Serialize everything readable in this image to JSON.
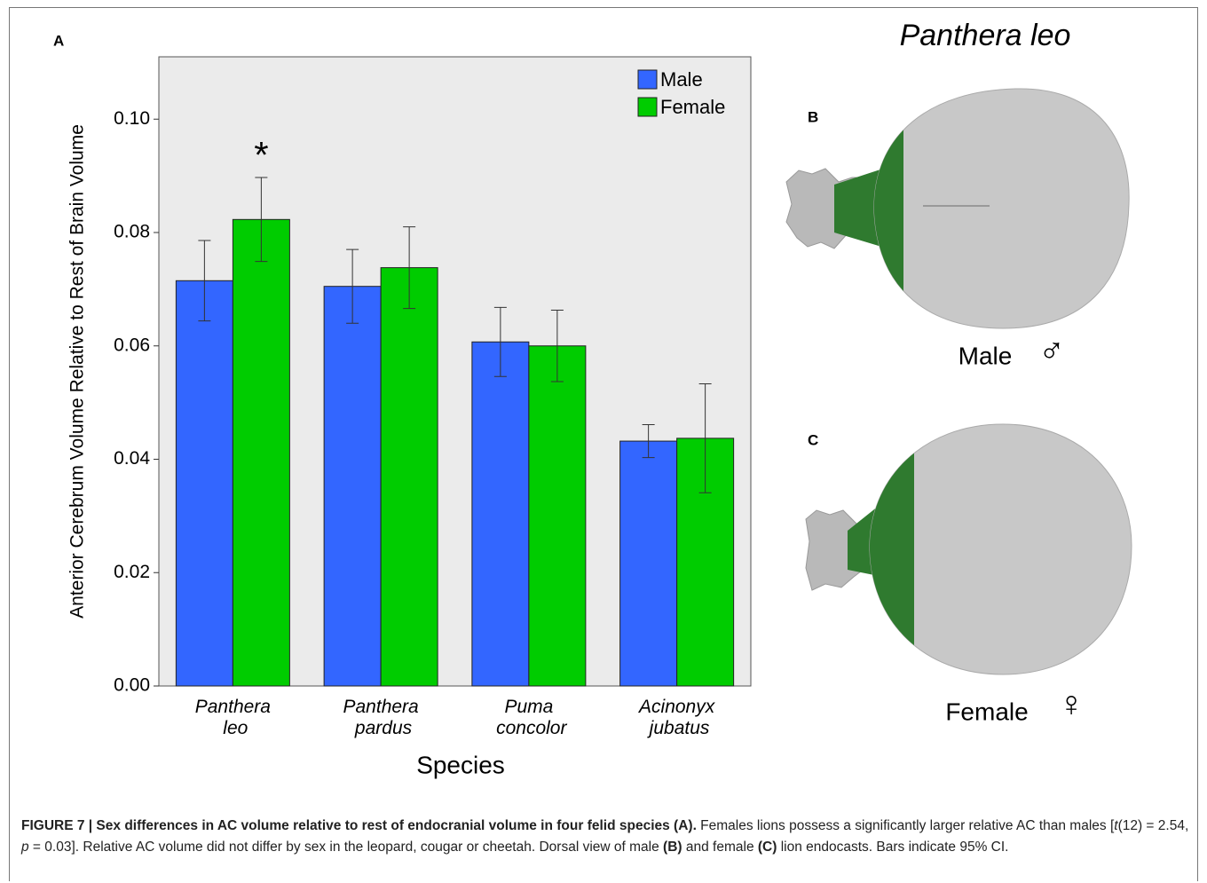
{
  "chart_data": {
    "type": "bar",
    "panel_label": "A",
    "y_label": "Anterior Cerebrum Volume Relative to Rest of Brain Volume",
    "x_label": "Species",
    "categories": [
      "Panthera leo",
      "Panthera pardus",
      "Puma concolor",
      "Acinonyx jubatus"
    ],
    "series": [
      {
        "name": "Male",
        "color": "#3366ff",
        "values": [
          0.0715,
          0.0705,
          0.0607,
          0.0432
        ],
        "errors": [
          0.0071,
          0.0065,
          0.0061,
          0.0029
        ]
      },
      {
        "name": "Female",
        "color": "#00cc00",
        "values": [
          0.0823,
          0.0738,
          0.06,
          0.0437
        ],
        "errors": [
          0.0074,
          0.0072,
          0.0063,
          0.0096
        ]
      }
    ],
    "ylim": [
      0,
      0.111
    ],
    "yticks": [
      {
        "value": 0,
        "label": "0.00"
      },
      {
        "value": 0.02,
        "label": "0.02"
      },
      {
        "value": 0.04,
        "label": "0.04"
      },
      {
        "value": 0.06,
        "label": "0.06"
      },
      {
        "value": 0.08,
        "label": "0.08"
      },
      {
        "value": 0.1,
        "label": "0.10"
      }
    ],
    "annotation": "*",
    "legend": "upper-right"
  },
  "images": {
    "title": "Panthera leo",
    "panels": [
      {
        "label": "B",
        "caption": "Male",
        "symbol": "♂"
      },
      {
        "label": "C",
        "caption": "Female",
        "symbol": "♀"
      }
    ]
  },
  "caption": [
    {
      "text": "FIGURE 7 | Sex differences in AC volume relative to rest of endocranial volume in four felid species (A).",
      "style": "bold"
    },
    {
      "text": " Females lions possess a significantly larger relative AC than males [",
      "style": "normal"
    },
    {
      "text": "t",
      "style": "italic"
    },
    {
      "text": "(12) = 2.54, ",
      "style": "normal"
    },
    {
      "text": "p",
      "style": "italic"
    },
    {
      "text": " = 0.03]. Relative AC volume did not differ by sex in the leopard, cougar or cheetah. Dorsal view of male ",
      "style": "normal"
    },
    {
      "text": "(B)",
      "style": "bold"
    },
    {
      "text": " and female ",
      "style": "normal"
    },
    {
      "text": "(C)",
      "style": "bold"
    },
    {
      "text": " lion endocasts. Bars indicate 95% CI.",
      "style": "normal"
    }
  ]
}
